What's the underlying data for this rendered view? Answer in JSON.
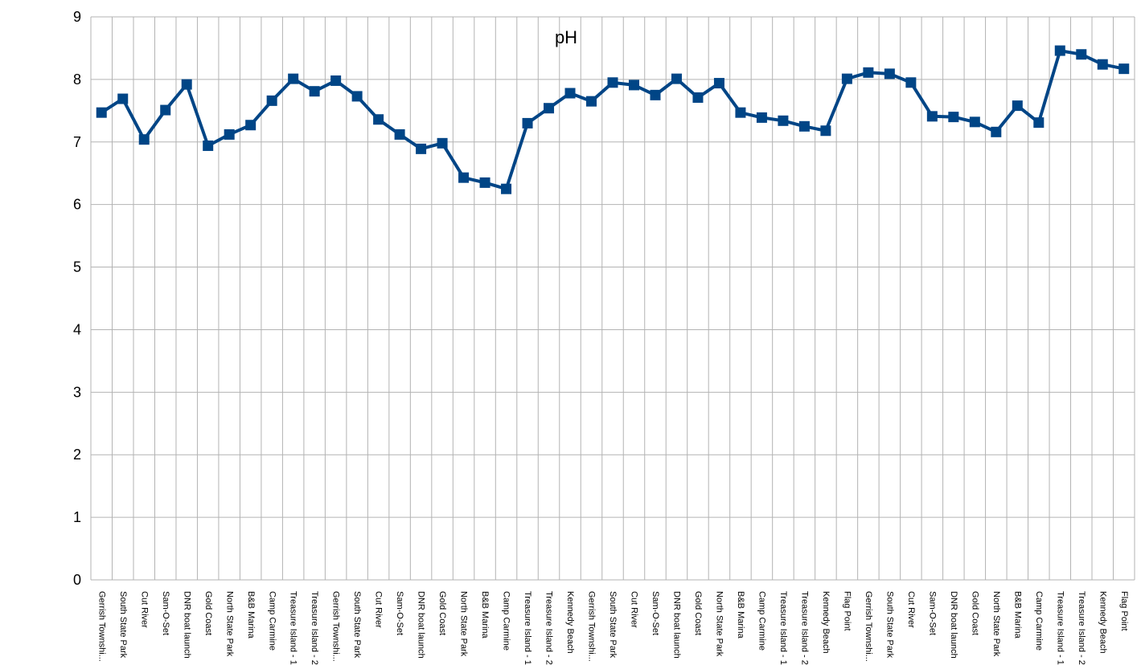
{
  "chart_data": {
    "type": "line",
    "title": "pH",
    "xlabel": "",
    "ylabel": "",
    "ylim": [
      0,
      9
    ],
    "yticks": [
      0,
      1,
      2,
      3,
      4,
      5,
      6,
      7,
      8,
      9
    ],
    "grid": true,
    "legend": "none",
    "line_color": "#004586",
    "categories": [
      "Gerrish Townshi...",
      "South State Park",
      "Cut River",
      "Sam-O-Set",
      "DNR boat launch",
      "Gold Coast",
      "North State Park",
      "B&B Marina",
      "Camp Carmine",
      "Treasure Island - 1",
      "Treasure Island - 2",
      "Gerrish Townshi...",
      "South State Park",
      "Cut River",
      "Sam-O-Set",
      "DNR boat launch",
      "Gold Coast",
      "North State Park",
      "B&B Marina",
      "Camp Carmine",
      "Treasure Island - 1",
      "Treasure Island - 2",
      "Kennedy Beach",
      "Gerrish Townshi...",
      "South State Park",
      "Cut River",
      "Sam-O-Set",
      "DNR boat launch",
      "Gold Coast",
      "North State Park",
      "B&B Marina",
      "Camp Carmine",
      "Treasure Island - 1",
      "Treasure Island - 2",
      "Kennedy Beach",
      "Flag Point",
      "Gerrish Townshi...",
      "South State Park",
      "Cut River",
      "Sam-O-Set",
      "DNR boat launch",
      "Gold Coast",
      "North State Park",
      "B&B Marina",
      "Camp Carmine",
      "Treasure Island - 1",
      "Treasure Island - 2",
      "Kennedy Beach",
      "Flag Point"
    ],
    "values": [
      7.47,
      7.69,
      7.04,
      7.51,
      7.92,
      6.94,
      7.12,
      7.27,
      7.66,
      8.01,
      7.81,
      7.98,
      7.73,
      7.36,
      7.12,
      6.89,
      6.98,
      6.43,
      6.35,
      6.25,
      7.3,
      7.54,
      7.78,
      7.65,
      7.95,
      7.91,
      7.75,
      8.01,
      7.71,
      7.94,
      7.47,
      7.39,
      7.34,
      7.25,
      7.18,
      8.01,
      8.11,
      8.09,
      7.95,
      7.41,
      7.4,
      7.32,
      7.16,
      7.58,
      7.31,
      8.46,
      8.4,
      8.24,
      8.17
    ]
  }
}
